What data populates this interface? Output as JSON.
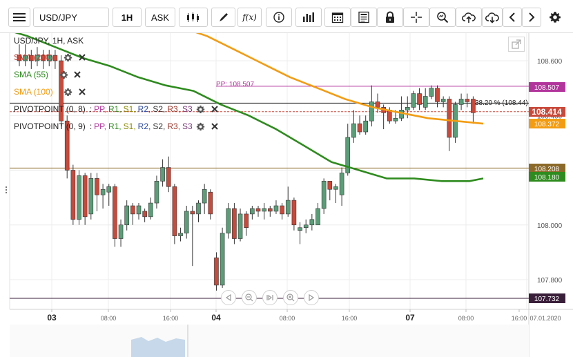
{
  "toolbar": {
    "symbol": "USD/JPY",
    "timeframe": "1H",
    "price_type": "ASK",
    "icons": [
      "menu-icon",
      "candle-type-icon",
      "draw-icon",
      "function-icon",
      "info-icon",
      "indicator-bars-icon",
      "calendar-icon",
      "news-icon",
      "lock-icon",
      "crosshair-icon",
      "zoom-icon",
      "upload-icon",
      "download-icon",
      "chevron-left-icon",
      "chevron-right-icon",
      "gear-icon"
    ],
    "function_label": "f(x)"
  },
  "legend": {
    "title": "USD/JPY, 1H, ASK",
    "sma200": "SMA (200)",
    "sma55": "SMA (55)",
    "sma100": "SMA (100)",
    "pivot1": "PIVOTPOINT (0, 8)",
    "pivot2": "PIVOTPOINT (0, 9)",
    "pivot_sep": ":",
    "pivot_tokens": [
      "PP,",
      "R1,",
      "S1,",
      "R2,",
      "S2,",
      "R3,",
      "S3"
    ]
  },
  "annotations": {
    "pp_label": "PP: 108.507",
    "fib_label": "38.20 % (108.44)"
  },
  "colors": {
    "sma200": "#c0392b",
    "sma55": "#2e8b1e",
    "sma100": "#f39c12",
    "pp": "#b2359c",
    "r1": "#2e8b1e",
    "s1": "#8b8b00",
    "r2": "#2c4a9e",
    "s2": "#333333",
    "r3": "#9a3b2e",
    "s3": "#7a3a7a",
    "bull": "#5a9e78",
    "bear": "#c9493a"
  },
  "price_axis": {
    "ticks": [
      "108.600",
      "108.400",
      "108.200",
      "108.000",
      "107.800"
    ],
    "badges": [
      {
        "label": "108.507",
        "color": "#b2359c"
      },
      {
        "label": "108.414",
        "color": "#c9493a"
      },
      {
        "label": "108.372",
        "color": "#f39c12"
      },
      {
        "label": "108.208",
        "color": "#8c6a2a"
      },
      {
        "label": "108.180",
        "color": "#2e8b1e"
      },
      {
        "label": "107.732",
        "color": "#3a1f3a"
      }
    ]
  },
  "time_axis": {
    "labels": [
      "03",
      "08:00",
      "16:00",
      "04",
      "08:00",
      "16:00",
      "07",
      "08:00",
      "16:00"
    ],
    "bold": [
      true,
      false,
      false,
      true,
      false,
      false,
      true,
      false,
      false
    ],
    "date_label": "07.01.2020"
  },
  "chart_data": {
    "type": "candlestick",
    "ylim": [
      107.7,
      108.72
    ],
    "hlines": {
      "pp": 108.507,
      "mid": 108.44,
      "pivot_dash": 108.414,
      "s_level": 108.208,
      "low_line": 107.732
    },
    "candles": [
      [
        108.62,
        108.6,
        108.66,
        108.58
      ],
      [
        108.6,
        108.62,
        108.66,
        108.58
      ],
      [
        108.62,
        108.6,
        108.64,
        108.57
      ],
      [
        108.6,
        108.62,
        108.65,
        108.58
      ],
      [
        108.62,
        108.6,
        108.64,
        108.57
      ],
      [
        108.6,
        108.62,
        108.64,
        108.58
      ],
      [
        108.62,
        108.6,
        108.64,
        108.57
      ],
      [
        108.6,
        108.38,
        108.62,
        108.36
      ],
      [
        108.38,
        108.2,
        108.4,
        108.17
      ],
      [
        108.2,
        108.02,
        108.22,
        108.0
      ],
      [
        108.02,
        108.18,
        108.2,
        108.0
      ],
      [
        108.18,
        108.03,
        108.19,
        108.0
      ],
      [
        108.04,
        108.17,
        108.19,
        108.02
      ],
      [
        108.17,
        108.11,
        108.19,
        108.05
      ],
      [
        108.11,
        108.13,
        108.15,
        108.06
      ],
      [
        108.12,
        108.14,
        108.15,
        108.07
      ],
      [
        108.14,
        107.95,
        108.15,
        107.92
      ],
      [
        107.95,
        108.0,
        108.02,
        107.92
      ],
      [
        108.0,
        108.07,
        108.09,
        107.98
      ],
      [
        108.07,
        108.04,
        108.08,
        108.0
      ],
      [
        108.04,
        108.07,
        108.08,
        108.02
      ],
      [
        108.05,
        108.03,
        108.06,
        108.01
      ],
      [
        108.03,
        108.08,
        108.1,
        108.02
      ],
      [
        108.08,
        108.16,
        108.18,
        108.06
      ],
      [
        108.16,
        108.21,
        108.24,
        108.14
      ],
      [
        108.21,
        108.14,
        108.25,
        108.12
      ],
      [
        108.14,
        107.96,
        108.15,
        107.93
      ],
      [
        107.96,
        107.97,
        107.99,
        107.94
      ],
      [
        107.97,
        108.05,
        108.07,
        107.95
      ],
      [
        108.05,
        108.04,
        108.07,
        107.85
      ],
      [
        108.04,
        108.08,
        108.09,
        108.01
      ],
      [
        108.08,
        108.13,
        108.15,
        108.04
      ],
      [
        108.12,
        108.04,
        108.13,
        108.02
      ],
      [
        107.88,
        107.78,
        107.9,
        107.76
      ],
      [
        107.78,
        107.97,
        107.99,
        107.77
      ],
      [
        107.97,
        108.06,
        108.08,
        107.95
      ],
      [
        108.06,
        107.95,
        108.08,
        107.93
      ],
      [
        107.95,
        108.04,
        108.06,
        107.94
      ],
      [
        108.04,
        107.99,
        108.05,
        107.96
      ],
      [
        108.04,
        108.06,
        108.07,
        108.02
      ],
      [
        108.06,
        108.05,
        108.07,
        108.03
      ],
      [
        108.05,
        108.06,
        108.08,
        108.02
      ],
      [
        108.06,
        108.05,
        108.07,
        108.03
      ],
      [
        108.05,
        108.07,
        108.09,
        108.04
      ],
      [
        108.07,
        108.04,
        108.08,
        108.02
      ],
      [
        108.04,
        108.09,
        108.14,
        108.03
      ],
      [
        108.09,
        108.0,
        108.1,
        107.98
      ],
      [
        107.98,
        107.99,
        108.01,
        107.93
      ],
      [
        107.99,
        108.0,
        108.02,
        107.97
      ],
      [
        108.0,
        108.02,
        108.04,
        107.98
      ],
      [
        108.0,
        108.06,
        108.08,
        108.0
      ],
      [
        108.06,
        108.16,
        108.17,
        108.04
      ],
      [
        108.16,
        108.13,
        108.16,
        108.09
      ],
      [
        108.13,
        108.14,
        108.15,
        108.08
      ],
      [
        108.11,
        108.19,
        108.21,
        108.07
      ],
      [
        108.19,
        108.32,
        108.37,
        108.18
      ],
      [
        108.32,
        108.37,
        108.42,
        108.3
      ],
      [
        108.37,
        108.34,
        108.4,
        108.33
      ],
      [
        108.34,
        108.38,
        108.4,
        108.33
      ],
      [
        108.38,
        108.45,
        108.51,
        108.36
      ],
      [
        108.45,
        108.43,
        108.48,
        108.41
      ],
      [
        108.43,
        108.41,
        108.44,
        108.35
      ],
      [
        108.42,
        108.38,
        108.43,
        108.37
      ],
      [
        108.38,
        108.39,
        108.42,
        108.37
      ],
      [
        108.39,
        108.42,
        108.47,
        108.38
      ],
      [
        108.42,
        108.43,
        108.47,
        108.39
      ],
      [
        108.43,
        108.48,
        108.49,
        108.42
      ],
      [
        108.48,
        108.44,
        108.5,
        108.42
      ],
      [
        108.43,
        108.47,
        108.5,
        108.42
      ],
      [
        108.47,
        108.5,
        108.51,
        108.46
      ],
      [
        108.5,
        108.45,
        108.51,
        108.43
      ],
      [
        108.45,
        108.46,
        108.47,
        108.43
      ],
      [
        108.46,
        108.32,
        108.47,
        108.27
      ],
      [
        108.32,
        108.44,
        108.45,
        108.3
      ],
      [
        108.44,
        108.46,
        108.48,
        108.42
      ],
      [
        108.46,
        108.45,
        108.48,
        108.43
      ],
      [
        108.46,
        108.41,
        108.47,
        108.37
      ]
    ],
    "sma55": [
      [
        0,
        108.72
      ],
      [
        40,
        108.69
      ],
      [
        80,
        108.65
      ],
      [
        120,
        108.61
      ],
      [
        160,
        108.58
      ],
      [
        200,
        108.54
      ],
      [
        240,
        108.51
      ],
      [
        280,
        108.49
      ],
      [
        320,
        108.44
      ],
      [
        360,
        108.4
      ],
      [
        400,
        108.35
      ],
      [
        440,
        108.29
      ],
      [
        480,
        108.23
      ],
      [
        520,
        108.2
      ],
      [
        560,
        108.17
      ],
      [
        600,
        108.17
      ],
      [
        640,
        108.16
      ],
      [
        680,
        108.16
      ],
      [
        700,
        108.17
      ]
    ],
    "sma100": [
      [
        265,
        108.72
      ],
      [
        300,
        108.69
      ],
      [
        340,
        108.64
      ],
      [
        380,
        108.59
      ],
      [
        420,
        108.54
      ],
      [
        460,
        108.5
      ],
      [
        500,
        108.46
      ],
      [
        540,
        108.43
      ],
      [
        580,
        108.41
      ],
      [
        620,
        108.39
      ],
      [
        660,
        108.38
      ],
      [
        700,
        108.37
      ]
    ]
  }
}
